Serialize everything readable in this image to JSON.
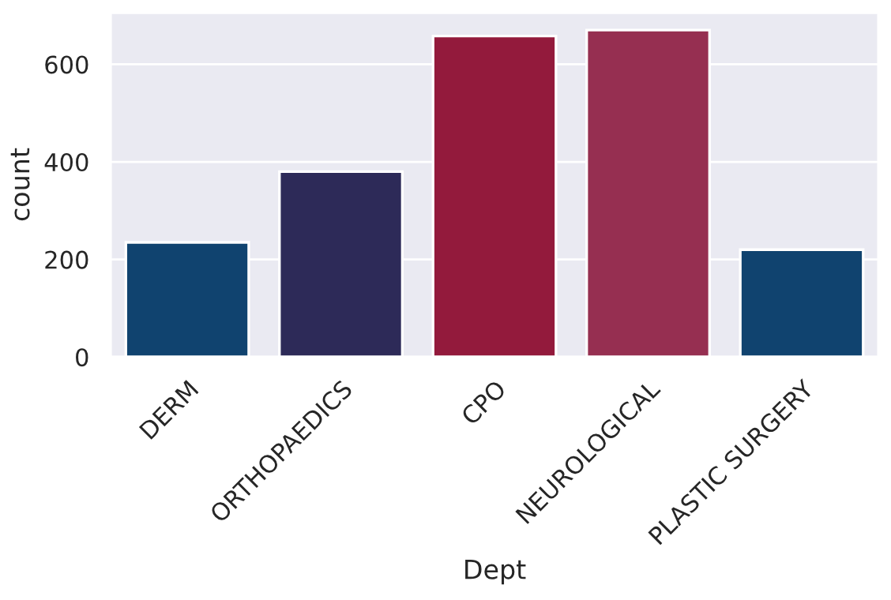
{
  "chart_data": {
    "type": "bar",
    "xlabel": "Dept",
    "ylabel": "count",
    "categories": [
      "DERM",
      "ORTHOPAEDICS",
      "CPO",
      "NEUROLOGICAL",
      "PLASTIC SURGERY"
    ],
    "values": [
      235,
      380,
      658,
      670,
      220
    ],
    "colors": [
      "#10436f",
      "#2d2a58",
      "#931a3c",
      "#962f51",
      "#10436f"
    ],
    "ylim": [
      0,
      706
    ],
    "yticks": [
      0,
      200,
      400,
      600
    ],
    "grid": "y"
  }
}
